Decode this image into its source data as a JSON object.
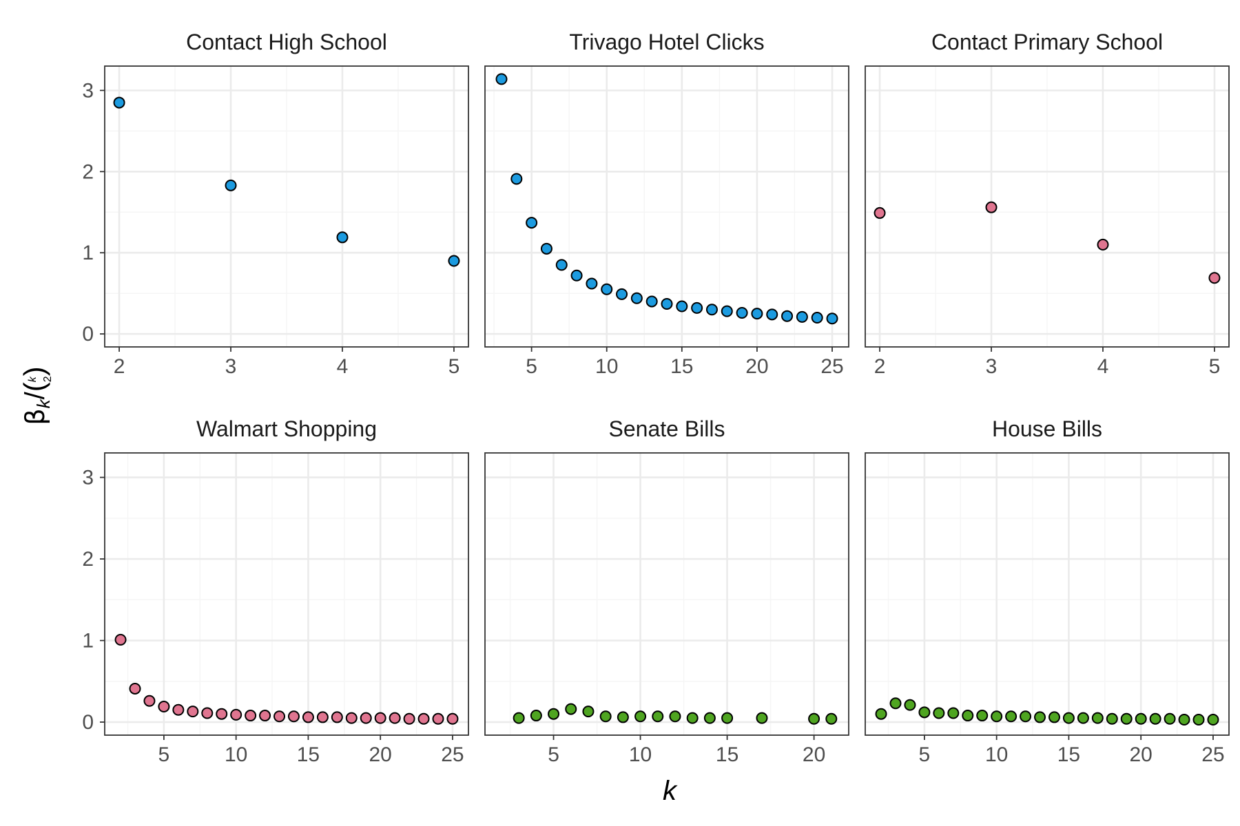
{
  "figure": {
    "xlabel": "k",
    "ylabel": "β_k / (k choose 2)",
    "ylabel_parts": {
      "beta": "β",
      "sub_k": "k",
      "slash": "/",
      "binom_top": "k",
      "binom_bottom": "2"
    }
  },
  "colors": {
    "blue": "#1c9be0",
    "pink": "#e07590",
    "green": "#4fa521",
    "panel_border": "#333333",
    "grid_major": "#ebebeb",
    "grid_minor": "#f5f5f5"
  },
  "chart_data": [
    {
      "type": "scatter",
      "title": "Contact High School",
      "color": "#1c9be0",
      "xlim": [
        1.87,
        5.13
      ],
      "xticks": [
        2,
        3,
        4,
        5
      ],
      "ylim": [
        -0.16,
        3.3
      ],
      "yticks": [
        0,
        1,
        2,
        3
      ],
      "points": [
        [
          2,
          2.85
        ],
        [
          3,
          1.83
        ],
        [
          4,
          1.19
        ],
        [
          5,
          0.9
        ]
      ]
    },
    {
      "type": "scatter",
      "title": "Trivago Hotel Clicks",
      "color": "#1c9be0",
      "xlim": [
        1.9,
        26.1
      ],
      "xticks": [
        5,
        10,
        15,
        20,
        25
      ],
      "ylim": [
        -0.16,
        3.3
      ],
      "yticks": [
        0,
        1,
        2,
        3
      ],
      "points": [
        [
          3,
          3.14
        ],
        [
          4,
          1.91
        ],
        [
          5,
          1.37
        ],
        [
          6,
          1.05
        ],
        [
          7,
          0.85
        ],
        [
          8,
          0.72
        ],
        [
          9,
          0.62
        ],
        [
          10,
          0.55
        ],
        [
          11,
          0.49
        ],
        [
          12,
          0.44
        ],
        [
          13,
          0.4
        ],
        [
          14,
          0.37
        ],
        [
          15,
          0.34
        ],
        [
          16,
          0.32
        ],
        [
          17,
          0.3
        ],
        [
          18,
          0.28
        ],
        [
          19,
          0.26
        ],
        [
          20,
          0.25
        ],
        [
          21,
          0.24
        ],
        [
          22,
          0.22
        ],
        [
          23,
          0.21
        ],
        [
          24,
          0.2
        ],
        [
          25,
          0.19
        ]
      ]
    },
    {
      "type": "scatter",
      "title": "Contact Primary School",
      "color": "#e07590",
      "xlim": [
        1.87,
        5.13
      ],
      "xticks": [
        2,
        3,
        4,
        5
      ],
      "ylim": [
        -0.16,
        3.3
      ],
      "yticks": [
        0,
        1,
        2,
        3
      ],
      "points": [
        [
          2,
          1.49
        ],
        [
          3,
          1.56
        ],
        [
          4,
          1.1
        ],
        [
          5,
          0.69
        ]
      ]
    },
    {
      "type": "scatter",
      "title": "Walmart Shopping",
      "color": "#e07590",
      "xlim": [
        0.9,
        26.1
      ],
      "xticks": [
        5,
        10,
        15,
        20,
        25
      ],
      "ylim": [
        -0.16,
        3.3
      ],
      "yticks": [
        0,
        1,
        2,
        3
      ],
      "points": [
        [
          2,
          1.01
        ],
        [
          3,
          0.41
        ],
        [
          4,
          0.26
        ],
        [
          5,
          0.19
        ],
        [
          6,
          0.15
        ],
        [
          7,
          0.13
        ],
        [
          8,
          0.11
        ],
        [
          9,
          0.1
        ],
        [
          10,
          0.09
        ],
        [
          11,
          0.08
        ],
        [
          12,
          0.08
        ],
        [
          13,
          0.07
        ],
        [
          14,
          0.07
        ],
        [
          15,
          0.06
        ],
        [
          16,
          0.06
        ],
        [
          17,
          0.06
        ],
        [
          18,
          0.05
        ],
        [
          19,
          0.05
        ],
        [
          20,
          0.05
        ],
        [
          21,
          0.05
        ],
        [
          22,
          0.04
        ],
        [
          23,
          0.04
        ],
        [
          24,
          0.04
        ],
        [
          25,
          0.04
        ]
      ]
    },
    {
      "type": "scatter",
      "title": "Senate Bills",
      "color": "#4fa521",
      "xlim": [
        1.05,
        22.0
      ],
      "xticks": [
        5,
        10,
        15,
        20
      ],
      "ylim": [
        -0.16,
        3.3
      ],
      "yticks": [
        0,
        1,
        2,
        3
      ],
      "points": [
        [
          3,
          0.05
        ],
        [
          4,
          0.08
        ],
        [
          5,
          0.1
        ],
        [
          6,
          0.16
        ],
        [
          7,
          0.13
        ],
        [
          8,
          0.07
        ],
        [
          9,
          0.06
        ],
        [
          10,
          0.07
        ],
        [
          11,
          0.07
        ],
        [
          12,
          0.07
        ],
        [
          13,
          0.05
        ],
        [
          14,
          0.05
        ],
        [
          15,
          0.05
        ],
        [
          17,
          0.05
        ],
        [
          20,
          0.04
        ],
        [
          21,
          0.04
        ]
      ]
    },
    {
      "type": "scatter",
      "title": "House Bills",
      "color": "#4fa521",
      "xlim": [
        0.9,
        26.1
      ],
      "xticks": [
        5,
        10,
        15,
        20,
        25
      ],
      "ylim": [
        -0.16,
        3.3
      ],
      "yticks": [
        0,
        1,
        2,
        3
      ],
      "points": [
        [
          2,
          0.1
        ],
        [
          3,
          0.23
        ],
        [
          4,
          0.21
        ],
        [
          5,
          0.12
        ],
        [
          6,
          0.11
        ],
        [
          7,
          0.11
        ],
        [
          8,
          0.08
        ],
        [
          9,
          0.08
        ],
        [
          10,
          0.07
        ],
        [
          11,
          0.07
        ],
        [
          12,
          0.07
        ],
        [
          13,
          0.06
        ],
        [
          14,
          0.06
        ],
        [
          15,
          0.05
        ],
        [
          16,
          0.05
        ],
        [
          17,
          0.05
        ],
        [
          18,
          0.04
        ],
        [
          19,
          0.04
        ],
        [
          20,
          0.04
        ],
        [
          21,
          0.04
        ],
        [
          22,
          0.04
        ],
        [
          23,
          0.03
        ],
        [
          24,
          0.03
        ],
        [
          25,
          0.03
        ]
      ]
    }
  ]
}
